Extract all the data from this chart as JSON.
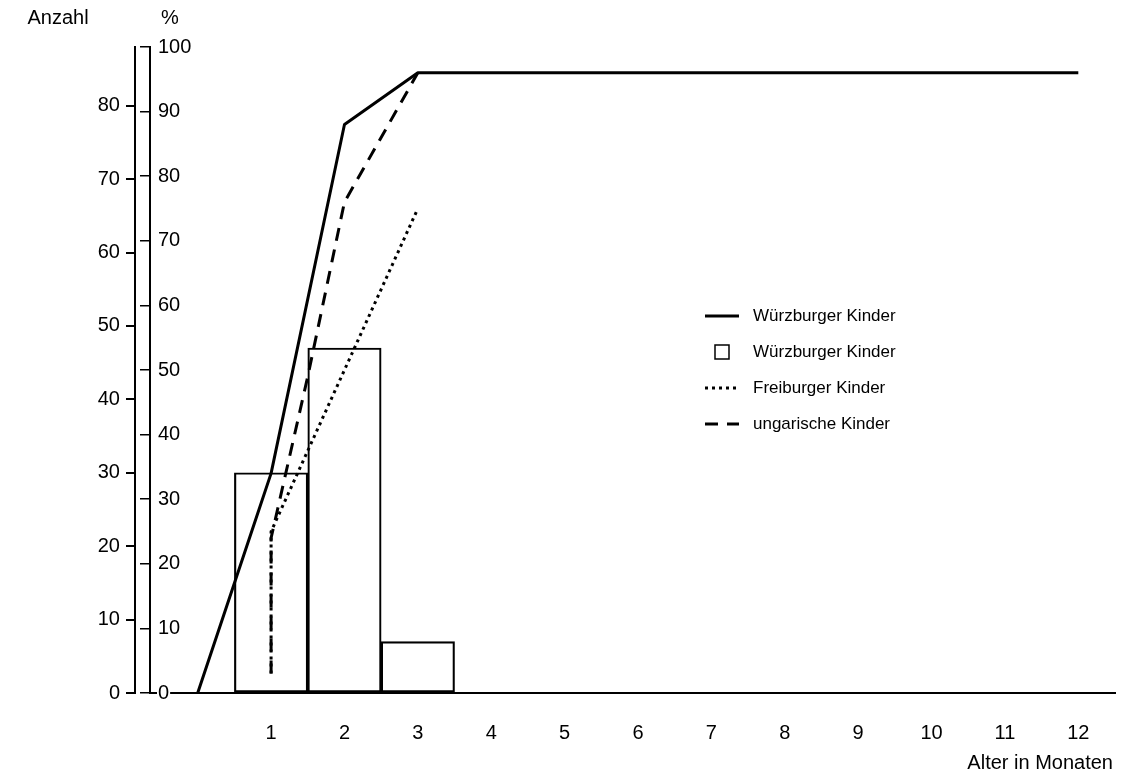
{
  "chart_data": {
    "type": "line",
    "xlabel": "Alter in Monaten",
    "ylabel": "Anzahl",
    "y2label": "%",
    "xlim": [
      -0.65,
      12.5
    ],
    "xticks": [
      1,
      2,
      3,
      4,
      5,
      6,
      7,
      8,
      9,
      10,
      11,
      12
    ],
    "ylim": [
      0,
      88
    ],
    "yticks": [
      0,
      10,
      20,
      30,
      40,
      50,
      60,
      70,
      80
    ],
    "y2lim": [
      0,
      100
    ],
    "y2ticks": [
      0,
      10,
      20,
      30,
      40,
      50,
      60,
      70,
      80,
      90,
      100
    ],
    "grid": false,
    "legend": "right",
    "series": [
      {
        "name": "Würzburger Kinder",
        "axis": "y2",
        "line_style": "solid",
        "color": "#000000",
        "x": [
          0,
          1,
          2,
          3,
          12
        ],
        "values": [
          0,
          34,
          88,
          96,
          96
        ]
      },
      {
        "name": "Würzburger Kinder",
        "type": "bar",
        "axis": "y",
        "color": "#000000",
        "x": [
          1,
          2,
          3
        ],
        "values": [
          30,
          47,
          7
        ]
      },
      {
        "name": "Freiburger Kinder",
        "type": "line",
        "axis": "y2",
        "line_style": "dotted",
        "color": "#000000",
        "x": [
          1,
          1,
          3
        ],
        "values": [
          3,
          25,
          75
        ]
      },
      {
        "name": "ungarische Kinder",
        "type": "line",
        "axis": "y2",
        "line_style": "dashed",
        "color": "#000000",
        "x": [
          1,
          1,
          1.5,
          2,
          3
        ],
        "values": [
          3,
          24,
          49,
          76,
          96
        ]
      }
    ]
  }
}
